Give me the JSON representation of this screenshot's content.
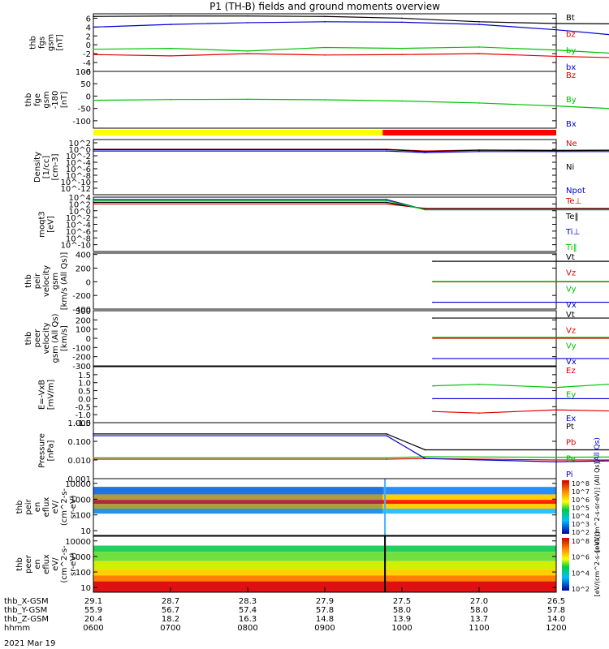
{
  "title": "P1 (TH-B) fields and ground moments overview",
  "date_label": "2021 Mar 19",
  "chart_data": [
    {
      "id": "p1",
      "type": "line",
      "ylabel_lines": [
        "thb",
        "fgs",
        "gsm",
        "[nT]"
      ],
      "ylim": [
        -6,
        7
      ],
      "yticks": [
        "6",
        "4",
        "2",
        "0",
        "-2",
        "-4",
        "-6"
      ],
      "series": [
        {
          "name": "Bt",
          "color": "#000000",
          "x": [
            0,
            1,
            2,
            3,
            4,
            5,
            6,
            7,
            8,
            9,
            10,
            11,
            12
          ],
          "y": [
            6.4,
            6.5,
            6.5,
            6.4,
            6.0,
            5.2,
            4.8,
            4.7,
            4.5,
            4.6,
            4.6,
            4.5,
            4.4
          ]
        },
        {
          "name": "bz",
          "color": "#e00000",
          "x": [
            0,
            1,
            2,
            3,
            4,
            5,
            6,
            7,
            8,
            9,
            10,
            11,
            12
          ],
          "y": [
            -2.2,
            -2.5,
            -2.0,
            -2.3,
            -2.2,
            -2.0,
            -2.6,
            -3.0,
            -2.6,
            -3.2,
            -2.5,
            -3.0,
            -1.8
          ]
        },
        {
          "name": "by",
          "color": "#00c000",
          "x": [
            0,
            1,
            2,
            3,
            4,
            5,
            6,
            7,
            8,
            9,
            10,
            11,
            12
          ],
          "y": [
            -1.0,
            -0.8,
            -1.4,
            -0.6,
            -0.8,
            -0.5,
            -1.2,
            -2.2,
            -0.4,
            -2.0,
            -1.2,
            -2.4,
            -0.6
          ]
        },
        {
          "name": "bx",
          "color": "#0000d0",
          "x": [
            0,
            1,
            2,
            3,
            4,
            5,
            6,
            7,
            8,
            9,
            10,
            11,
            12
          ],
          "y": [
            4.0,
            4.6,
            5.0,
            5.2,
            5.1,
            4.6,
            3.4,
            1.8,
            2.0,
            1.5,
            1.9,
            1.2,
            1.6
          ]
        }
      ]
    },
    {
      "id": "p2",
      "type": "line",
      "ylabel_lines": [
        "thb",
        "fge",
        "gsm",
        "-180",
        "[nT]"
      ],
      "ylim": [
        -130,
        100
      ],
      "yticks": [
        "100",
        "50",
        "0",
        "-50",
        "-100"
      ],
      "series": [
        {
          "name": "Bz",
          "color": "#e00000",
          "x": [],
          "y": []
        },
        {
          "name": "By",
          "color": "#00c000",
          "x": [
            0,
            1,
            2,
            3,
            4,
            5,
            6,
            7,
            8,
            9,
            10,
            11,
            12
          ],
          "y": [
            -17,
            -14,
            -13,
            -15,
            -20,
            -28,
            -40,
            -55,
            -70,
            -88,
            -103,
            -118,
            -118
          ]
        },
        {
          "name": "Bx",
          "color": "#0000d0",
          "x": [],
          "y": []
        }
      ]
    },
    {
      "id": "p3",
      "type": "line",
      "ylabel_lines": [
        "Density",
        "[1/cc]",
        "[cm-3]"
      ],
      "ylog": true,
      "ylim": [
        1e-14,
        1000
      ],
      "yticks": [
        "10^2",
        "10^0",
        "10^-2",
        "10^-4",
        "10^-6",
        "10^-8",
        "10^-10",
        "10^-12"
      ],
      "series": [
        {
          "name": "Ne",
          "color": "#e00000",
          "x": [
            0,
            3.8,
            4.3,
            5,
            6,
            7,
            8,
            9,
            10,
            11,
            12
          ],
          "y": [
            1,
            1,
            0.3,
            0.6,
            0.5,
            0.6,
            0.5,
            0.6,
            0.5,
            0.6,
            0.5
          ]
        },
        {
          "name": "Ni",
          "color": "#000000",
          "x": [
            0,
            3.8,
            4.3,
            5,
            6,
            7,
            8,
            9,
            10,
            11,
            12
          ],
          "y": [
            0.8,
            0.8,
            0.2,
            0.5,
            0.4,
            0.5,
            0.4,
            0.5,
            0.4,
            0.5,
            0.4
          ]
        },
        {
          "name": "Npot",
          "color": "#0000d0",
          "x": [
            0,
            3.8,
            4.3,
            5,
            6,
            7,
            8,
            9,
            10,
            11,
            12
          ],
          "y": [
            0.3,
            0.3,
            0.1,
            0.2,
            0.2,
            0.2,
            0.2,
            0.2,
            0.2,
            0.2,
            0.2
          ]
        }
      ]
    },
    {
      "id": "p4",
      "type": "line",
      "ylabel_lines": [
        "moqt3",
        "[eV]"
      ],
      "ylog": true,
      "ylim": [
        1e-12,
        10000
      ],
      "yticks": [
        "10^4",
        "10^2",
        "10^0",
        "10^-2",
        "10^-4",
        "10^-6",
        "10^-8",
        "10^-10"
      ],
      "series": [
        {
          "name": "Te⊥",
          "color": "#e00000",
          "x": [
            0,
            3.8,
            4.3,
            12
          ],
          "y": [
            100,
            100,
            5,
            5
          ]
        },
        {
          "name": "Te‖",
          "color": "#000000",
          "x": [
            0,
            3.8,
            4.3,
            12
          ],
          "y": [
            300,
            300,
            3,
            3
          ]
        },
        {
          "name": "Ti⊥",
          "color": "#0000d0",
          "x": [
            0,
            3.8,
            4.3,
            12
          ],
          "y": [
            2000,
            2000,
            2,
            2
          ]
        },
        {
          "name": "Ti‖",
          "color": "#00c000",
          "x": [
            0,
            3.8,
            4.3,
            12
          ],
          "y": [
            1000,
            1000,
            2,
            2
          ]
        }
      ]
    },
    {
      "id": "p5",
      "type": "line",
      "ylabel_lines": [
        "thb",
        "peir",
        "velocity",
        "gsm",
        "[km/s (All Qs)]"
      ],
      "ylim": [
        -400,
        420
      ],
      "yticks": [
        "400",
        "200",
        "0",
        "-200",
        "-400"
      ],
      "series": [
        {
          "name": "Vt",
          "color": "#000000",
          "x": [
            4.4,
            12
          ],
          "y": [
            300,
            300
          ]
        },
        {
          "name": "Vz",
          "color": "#e00000",
          "x": [
            4.4,
            12
          ],
          "y": [
            0,
            0
          ]
        },
        {
          "name": "Vy",
          "color": "#00c000",
          "x": [
            4.4,
            12
          ],
          "y": [
            5,
            5
          ]
        },
        {
          "name": "Vx",
          "color": "#0000d0",
          "x": [
            4.4,
            12
          ],
          "y": [
            -300,
            -300
          ]
        }
      ]
    },
    {
      "id": "p6",
      "type": "line",
      "ylabel_lines": [
        "thb",
        "peer",
        "velocity",
        "gsm (All Qs)",
        "[km/s]"
      ],
      "ylim": [
        -300,
        300
      ],
      "yticks": [
        "300",
        "200",
        "100",
        "0",
        "-100",
        "-200",
        "-300"
      ],
      "series": [
        {
          "name": "Vt",
          "color": "#000000",
          "x": [
            4.4,
            12
          ],
          "y": [
            220,
            220
          ]
        },
        {
          "name": "Vz",
          "color": "#e00000",
          "x": [
            4.4,
            12
          ],
          "y": [
            0,
            0
          ]
        },
        {
          "name": "Vy",
          "color": "#00c000",
          "x": [
            4.4,
            12
          ],
          "y": [
            10,
            10
          ]
        },
        {
          "name": "Vx",
          "color": "#0000d0",
          "x": [
            4.4,
            12
          ],
          "y": [
            -220,
            -220
          ]
        }
      ]
    },
    {
      "id": "p7",
      "type": "line",
      "ylabel_lines": [
        "E=-VxB",
        "[mV/m]"
      ],
      "ylim": [
        -1.5,
        2.0
      ],
      "yticks": [
        "1.5",
        "1.0",
        "0.5",
        "0.0",
        "-0.5",
        "-1.0",
        "-1.5"
      ],
      "series": [
        {
          "name": "Ez",
          "color": "#e00000",
          "x": [
            4.4,
            5,
            6,
            7,
            8,
            9,
            10,
            11,
            12
          ],
          "y": [
            -0.8,
            -0.9,
            -0.7,
            -0.8,
            -1.0,
            -0.9,
            -0.8,
            -0.9,
            -0.7
          ]
        },
        {
          "name": "Ey",
          "color": "#00c000",
          "x": [
            4.4,
            5,
            6,
            7,
            8,
            9,
            10,
            11,
            12
          ],
          "y": [
            0.8,
            0.9,
            0.7,
            1.0,
            0.8,
            1.3,
            1.1,
            0.9,
            1.2
          ]
        },
        {
          "name": "Ex",
          "color": "#0000d0",
          "x": [
            4.4,
            12
          ],
          "y": [
            0,
            0
          ]
        }
      ]
    },
    {
      "id": "p8",
      "type": "line",
      "ylabel_lines": [
        "Pressure",
        "[nPa]"
      ],
      "ylog": true,
      "ylim": [
        0.001,
        1.0
      ],
      "yticks": [
        "1.000",
        "0.100",
        "0.010",
        "0.001"
      ],
      "series": [
        {
          "name": "Pt",
          "color": "#000000",
          "x": [
            0,
            3.8,
            4.3,
            12
          ],
          "y": [
            0.25,
            0.25,
            0.035,
            0.035
          ]
        },
        {
          "name": "Pb",
          "color": "#e00000",
          "x": [
            0,
            3.8,
            4.3,
            6,
            8,
            10,
            12
          ],
          "y": [
            0.011,
            0.011,
            0.012,
            0.01,
            0.01,
            0.01,
            0.01
          ]
        },
        {
          "name": "Pe",
          "color": "#00c000",
          "x": [
            0,
            3.8,
            4.3,
            6,
            8,
            10,
            12
          ],
          "y": [
            0.013,
            0.013,
            0.015,
            0.014,
            0.015,
            0.014,
            0.015
          ]
        },
        {
          "name": "Pi",
          "color": "#0000d0",
          "x": [
            0,
            3.8,
            4.3,
            6,
            8,
            10,
            12
          ],
          "y": [
            0.2,
            0.2,
            0.012,
            0.008,
            0.011,
            0.009,
            0.012
          ]
        }
      ],
      "right_label": "(All Qs)"
    },
    {
      "id": "p9",
      "type": "heatmap",
      "ylabel_lines": [
        "thb",
        "peir",
        "en",
        "eflux",
        "eV/",
        "(cm^2-s-",
        "sr-eV)"
      ],
      "ylog": true,
      "ylim": [
        5,
        20000
      ],
      "yticks": [
        "10000",
        "1000",
        "100",
        "10"
      ],
      "colorbar": {
        "ticks": [
          "10^8",
          "10^7",
          "10^6",
          "10^5",
          "10^4",
          "10^3",
          "10^2"
        ],
        "label": "[eV/(cm^2-s-sr-eV)] (All Qs)"
      }
    },
    {
      "id": "p10",
      "type": "heatmap",
      "ylabel_lines": [
        "thb",
        "peer",
        "en",
        "eflux",
        "eV/",
        "(cm^2-s-",
        "sr-eV)"
      ],
      "ylog": true,
      "ylim": [
        5,
        20000
      ],
      "yticks": [
        "10000",
        "1000",
        "100",
        "10"
      ],
      "colorbar": {
        "ticks": [
          "10^8",
          "10^6",
          "10^4",
          "10^2"
        ],
        "label": "[eV/(cm^2-s-sr-eV)]"
      }
    }
  ],
  "status_bar": {
    "colors": [
      "#ffff00",
      "#ff0000"
    ],
    "split_hour": 3.75
  },
  "xaxis": {
    "rows": [
      {
        "name": "thb_X-GSM",
        "values": [
          "29.1",
          "28.7",
          "28.3",
          "27.9",
          "27.5",
          "27.0",
          "26.5"
        ]
      },
      {
        "name": "thb_Y-GSM",
        "values": [
          "55.9",
          "56.7",
          "57.4",
          "57.8",
          "58.0",
          "58.0",
          "57.8"
        ]
      },
      {
        "name": "thb_Z-GSM",
        "values": [
          "20.4",
          "18.2",
          "16.3",
          "14.8",
          "13.9",
          "13.7",
          "14.0"
        ]
      },
      {
        "name": "hhmm",
        "values": [
          "0600",
          "0700",
          "0800",
          "0900",
          "1000",
          "1100",
          "1200"
        ]
      }
    ]
  }
}
